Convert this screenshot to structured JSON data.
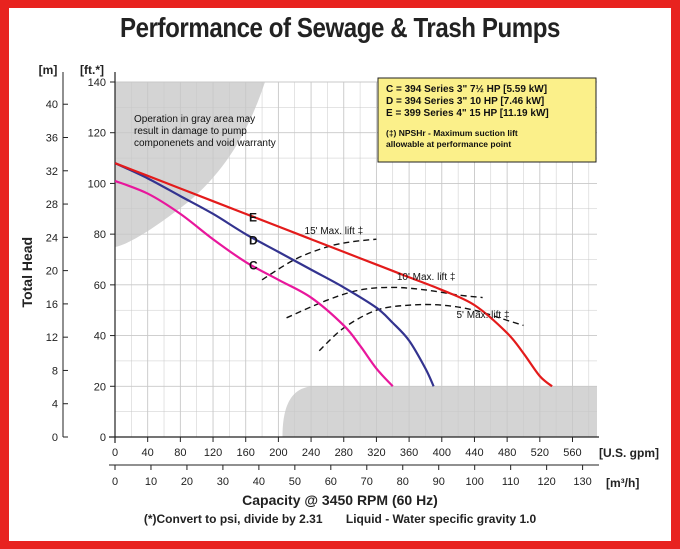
{
  "chart_data": {
    "type": "line",
    "title": "Performance of Sewage & Trash Pumps",
    "xlabel": "Capacity @ 3450 RPM (60 Hz)",
    "ylabel": "Total Head",
    "x_primary_unit": "[U.S. gpm]",
    "x_secondary_unit": "[m³/h]",
    "y_primary_unit": "[ft.*]",
    "y_secondary_unit": "[m]",
    "xlim": [
      0,
      590
    ],
    "ylim": [
      0,
      140
    ],
    "x_ticks": [
      "0",
      "40",
      "80",
      "120",
      "160",
      "200",
      "240",
      "280",
      "320",
      "360",
      "400",
      "440",
      "480",
      "520",
      "560"
    ],
    "x_ticks_m3h": [
      "0",
      "10",
      "20",
      "30",
      "40",
      "50",
      "60",
      "70",
      "80",
      "90",
      "100",
      "110",
      "120",
      "130"
    ],
    "y_ticks_ft": [
      "0",
      "20",
      "40",
      "60",
      "80",
      "100",
      "120",
      "140"
    ],
    "y_ticks_m": [
      "0",
      "4",
      "8",
      "12",
      "16",
      "20",
      "24",
      "28",
      "32",
      "36",
      "40"
    ],
    "grid": true,
    "series": [
      {
        "name": "C",
        "color": "#e8179c",
        "x": [
          0,
          40,
          80,
          120,
          160,
          200,
          240,
          280,
          300,
          320,
          340
        ],
        "y": [
          101,
          96,
          88,
          78,
          69,
          62,
          55,
          44,
          36,
          27,
          20
        ]
      },
      {
        "name": "D",
        "color": "#33338f",
        "x": [
          0,
          40,
          80,
          120,
          160,
          200,
          240,
          280,
          320,
          340,
          360,
          380,
          390
        ],
        "y": [
          108,
          102,
          95,
          88,
          80,
          73,
          66,
          59,
          51,
          45,
          38,
          27,
          20
        ]
      },
      {
        "name": "E",
        "color": "#e31b1b",
        "x": [
          0,
          40,
          80,
          120,
          160,
          200,
          240,
          280,
          320,
          360,
          400,
          440,
          480,
          500,
          520,
          535
        ],
        "y": [
          108,
          103,
          98,
          93,
          88,
          83,
          78,
          73,
          68,
          63,
          58,
          52,
          41,
          33,
          24,
          20
        ]
      }
    ],
    "lift_lines": [
      {
        "label": "15' Max. lift ‡",
        "x": [
          180,
          220,
          260,
          290,
          320
        ],
        "y": [
          62,
          70,
          75,
          77,
          78
        ]
      },
      {
        "label": "10' Max. lift ‡",
        "x": [
          210,
          260,
          300,
          340,
          380,
          420,
          450
        ],
        "y": [
          47,
          54,
          58,
          59,
          58,
          56,
          55
        ]
      },
      {
        "label": "5' Max. lift ‡",
        "x": [
          250,
          280,
          320,
          360,
          400,
          440,
          480,
          500
        ],
        "y": [
          34,
          43,
          50,
          52,
          52,
          50,
          46,
          44
        ]
      }
    ],
    "curve_labels": [
      "E",
      "D",
      "C"
    ],
    "shaded_regions": [
      "top-left",
      "bottom-right"
    ],
    "legend": {
      "lines": [
        "C = 394 Series 3\" 7½ HP [5.59 kW]",
        "D = 394 Series 3\" 10 HP [7.46 kW]",
        "E = 399 Series 4\" 15 HP [11.19 kW]"
      ],
      "note_lines": [
        "(‡) NPSHr - Maximum suction lift",
        "allowable at performance point"
      ],
      "placement": "top-right",
      "background": "#fbf08a"
    },
    "gray_note_lines": [
      "Operation in gray area may",
      "result in damage to pump",
      "componenets and void warranty"
    ],
    "footnote_left": "(*)Convert to psi, divide by 2.31",
    "footnote_right": "Liquid - Water specific gravity 1.0",
    "colors": {
      "frame": "#e8231f",
      "gray_area": "#d4d4d4",
      "grid": "#c8c8c8"
    }
  }
}
